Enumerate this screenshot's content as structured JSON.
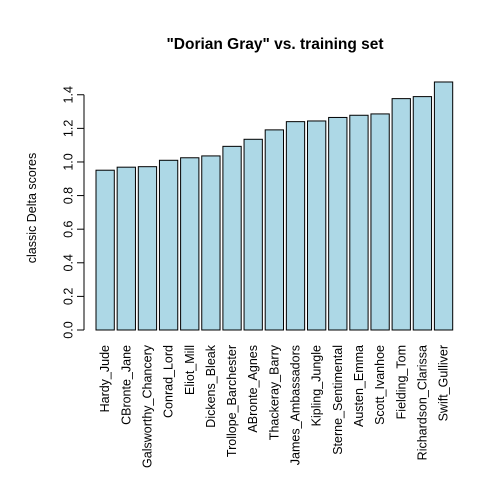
{
  "chart_data": {
    "type": "bar",
    "title": "\"Dorian Gray\" vs. training set",
    "xlabel": "",
    "ylabel": "classic Delta scores",
    "ylim": [
      0,
      1.5
    ],
    "yticks": [
      "0.0",
      "0.2",
      "0.4",
      "0.6",
      "0.8",
      "1.0",
      "1.2",
      "1.4"
    ],
    "categories": [
      "Hardy_Jude",
      "CBronte_Jane",
      "Galsworthy_Chancery",
      "Conrad_Lord",
      "Eliot_Mill",
      "Dickens_Bleak",
      "Trollope_Barchester",
      "ABronte_Agnes",
      "Thackeray_Barry",
      "James_Ambassadors",
      "Kipling_Jungle",
      "Sterne_Sentimental",
      "Austen_Emma",
      "Scott_Ivanhoe",
      "Fielding_Tom",
      "Richardson_Clarissa",
      "Swift_Gulliver"
    ],
    "values": [
      0.951,
      0.969,
      0.972,
      1.01,
      1.025,
      1.036,
      1.093,
      1.135,
      1.191,
      1.24,
      1.244,
      1.265,
      1.278,
      1.286,
      1.377,
      1.389,
      1.476
    ],
    "colors": {
      "bar_fill": "#add8e6",
      "bar_stroke": "#000000"
    },
    "grid": false,
    "legend": "none"
  }
}
